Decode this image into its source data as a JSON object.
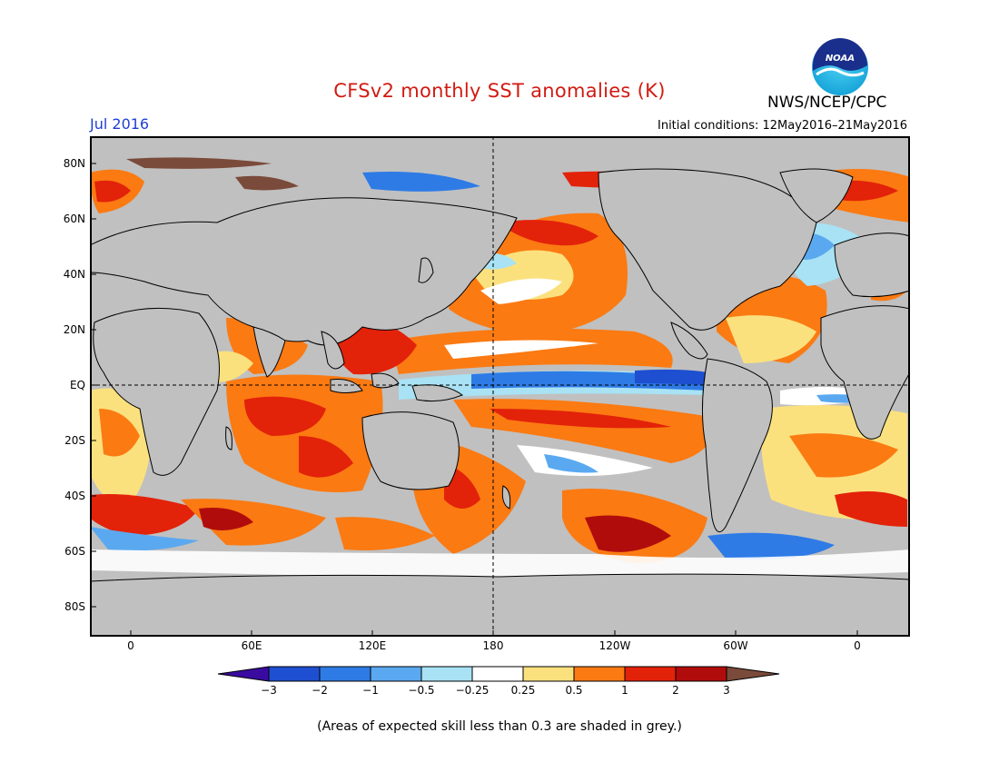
{
  "title": "CFSv2 monthly SST anomalies (K)",
  "month": "Jul 2016",
  "agency": "NWS/NCEP/CPC",
  "initial_conditions": "Initial conditions: 12May2016–21May2016",
  "note": "(Areas of expected skill less than 0.3 are shaded in grey.)",
  "logo_text": "NOAA",
  "map": {
    "projection": "equirectangular",
    "lon_range": [
      -20,
      380
    ],
    "lat_range": [
      -90,
      90
    ],
    "land_color": "#c0c0c0",
    "low_skill_color": "#c0c0c0",
    "lat_labels": [
      "80N",
      "60N",
      "40N",
      "20N",
      "EQ",
      "20S",
      "40S",
      "60S",
      "80S"
    ],
    "lon_labels": [
      "0",
      "60E",
      "120E",
      "180",
      "120W",
      "60W",
      "0"
    ],
    "dashed_lines": [
      "equator",
      "dateline 180"
    ]
  },
  "colorbar": {
    "ticks": [
      "−3",
      "−2",
      "−1",
      "−0.5",
      "−0.25",
      "0.25",
      "0.5",
      "1",
      "2",
      "3"
    ],
    "colors": [
      "#3a0ba0",
      "#1e4fd0",
      "#2e7be6",
      "#5aa9f0",
      "#a8e2f4",
      "#ffffff",
      "#fbe17e",
      "#fb7a12",
      "#e3220a",
      "#b10c0c",
      "#7a4a3a"
    ]
  }
}
